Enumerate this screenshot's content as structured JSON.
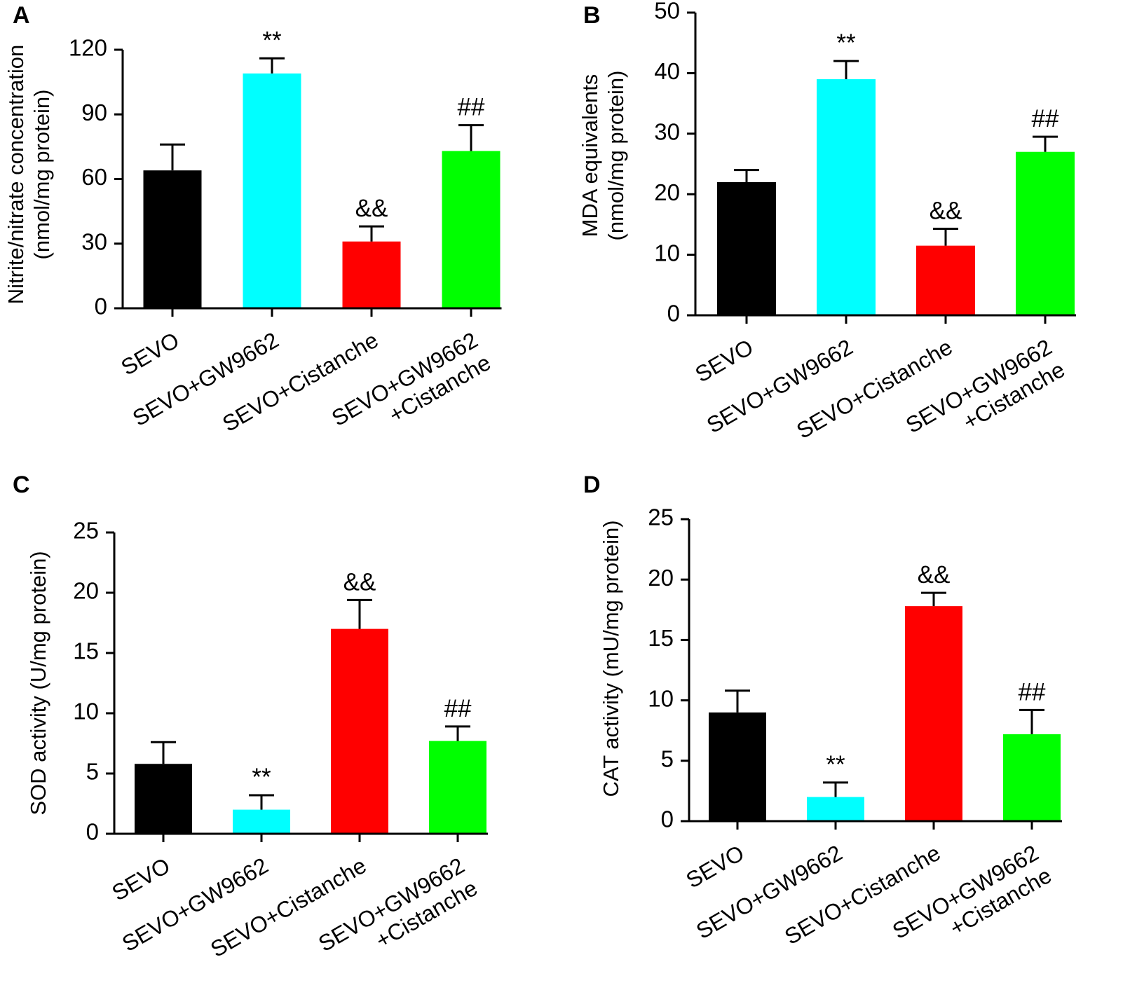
{
  "chart_data": [
    {
      "type": "bar",
      "panel": "A",
      "categories": [
        [
          "SEVO"
        ],
        [
          "SEVO+GW9662"
        ],
        [
          "SEVO+Cistanche"
        ],
        [
          "SEVO+GW9662",
          "+Cistanche"
        ]
      ],
      "values": [
        64,
        109,
        31,
        73
      ],
      "errors": [
        12,
        7,
        7,
        12
      ],
      "annotations": [
        "",
        "**",
        "&&",
        "##"
      ],
      "ylabel": [
        "Nitrite/nitrate concentration",
        "(nmol/mg protein)"
      ],
      "ylim": [
        0,
        120
      ],
      "yticks": [
        0,
        30,
        60,
        90,
        120
      ],
      "colors": [
        "#000000",
        "#00ffff",
        "#ff0000",
        "#00ff00"
      ]
    },
    {
      "type": "bar",
      "panel": "B",
      "categories": [
        [
          "SEVO"
        ],
        [
          "SEVO+GW9662"
        ],
        [
          "SEVO+Cistanche"
        ],
        [
          "SEVO+GW9662",
          "+Cistanche"
        ]
      ],
      "values": [
        22,
        39,
        11.5,
        27
      ],
      "errors": [
        2,
        3,
        2.8,
        2.5
      ],
      "annotations": [
        "",
        "**",
        "&&",
        "##"
      ],
      "ylabel": [
        "MDA equivalents",
        "(nmol/mg protein)"
      ],
      "ylim": [
        0,
        50
      ],
      "yticks": [
        0,
        10,
        20,
        30,
        40,
        50
      ],
      "colors": [
        "#000000",
        "#00ffff",
        "#ff0000",
        "#00ff00"
      ]
    },
    {
      "type": "bar",
      "panel": "C",
      "categories": [
        [
          "SEVO"
        ],
        [
          "SEVO+GW9662"
        ],
        [
          "SEVO+Cistanche"
        ],
        [
          "SEVO+GW9662",
          "+Cistanche"
        ]
      ],
      "values": [
        5.8,
        2,
        17,
        7.7
      ],
      "errors": [
        1.8,
        1.2,
        2.4,
        1.2
      ],
      "annotations": [
        "",
        "**",
        "&&",
        "##"
      ],
      "ylabel": [
        "SOD activity (U/mg protein)"
      ],
      "ylim": [
        0,
        25
      ],
      "yticks": [
        0,
        5,
        10,
        15,
        20,
        25
      ],
      "colors": [
        "#000000",
        "#00ffff",
        "#ff0000",
        "#00ff00"
      ]
    },
    {
      "type": "bar",
      "panel": "D",
      "categories": [
        [
          "SEVO"
        ],
        [
          "SEVO+GW9662"
        ],
        [
          "SEVO+Cistanche"
        ],
        [
          "SEVO+GW9662",
          "+Cistanche"
        ]
      ],
      "values": [
        9,
        2,
        17.8,
        7.2
      ],
      "errors": [
        1.8,
        1.2,
        1.1,
        2
      ],
      "annotations": [
        "",
        "**",
        "&&",
        "##"
      ],
      "ylabel": [
        "CAT activity (mU/mg protein)"
      ],
      "ylim": [
        0,
        25
      ],
      "yticks": [
        0,
        5,
        10,
        15,
        20,
        25
      ],
      "colors": [
        "#000000",
        "#00ffff",
        "#ff0000",
        "#00ff00"
      ]
    }
  ]
}
